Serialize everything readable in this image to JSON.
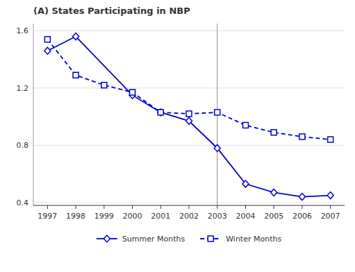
{
  "chart_data": {
    "type": "line",
    "title": "(A) States Participating in NBP",
    "series": [
      {
        "name": "Summer Months",
        "color": "#0000CC",
        "marker": "diamond",
        "line_style": "solid",
        "x": [
          1997,
          1998,
          2000,
          2001,
          2002,
          2003,
          2004,
          2005,
          2006,
          2007
        ],
        "values": [
          1.46,
          1.56,
          1.15,
          1.03,
          0.97,
          0.78,
          0.53,
          0.47,
          0.44,
          0.45
        ]
      },
      {
        "name": "Winter Months",
        "color": "#0000CC",
        "marker": "square",
        "line_style": "dashed",
        "x": [
          1997,
          1998,
          1999,
          2000,
          2001,
          2002,
          2003,
          2004,
          2005,
          2006,
          2007
        ],
        "values": [
          1.54,
          1.29,
          1.22,
          1.17,
          1.03,
          1.02,
          1.03,
          0.94,
          0.89,
          0.86,
          0.84
        ]
      }
    ],
    "vline": 2003,
    "xlim": [
      1996.5,
      2007.5
    ],
    "xticks": [
      1997,
      1998,
      1999,
      2000,
      2001,
      2002,
      2003,
      2004,
      2005,
      2006,
      2007
    ],
    "ylim": [
      0.38,
      1.65
    ],
    "yticks": [
      0.4,
      0.8,
      1.2,
      1.6
    ],
    "grid": "y",
    "legend": "bottom"
  }
}
